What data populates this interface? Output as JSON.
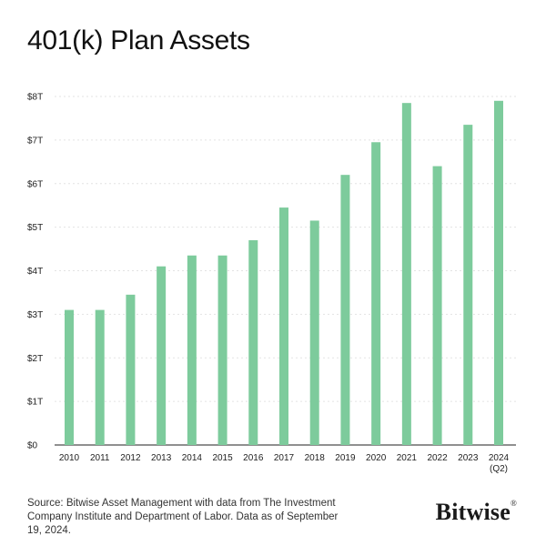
{
  "page": {
    "title": "401(k) Plan Assets",
    "source": "Source: Bitwise Asset Management with data from The Investment Company Institute and Department of Labor. Data as of September 19, 2024.",
    "brand": "Bitwise",
    "brand_mark": "®"
  },
  "colors": {
    "bar": "#7dcb9c",
    "grid": "#e3e3e3",
    "axis": "#222222"
  },
  "chart_data": {
    "type": "bar",
    "title": "401(k) Plan Assets",
    "xlabel": "",
    "ylabel": "",
    "categories": [
      "2010",
      "2011",
      "2012",
      "2013",
      "2014",
      "2015",
      "2016",
      "2017",
      "2018",
      "2019",
      "2020",
      "2021",
      "2022",
      "2023",
      "2024"
    ],
    "category_sublabels": [
      "",
      "",
      "",
      "",
      "",
      "",
      "",
      "",
      "",
      "",
      "",
      "",
      "",
      "",
      "(Q2)"
    ],
    "values": [
      3.1,
      3.1,
      3.45,
      4.1,
      4.35,
      4.35,
      4.7,
      5.45,
      5.15,
      6.2,
      6.95,
      7.85,
      6.4,
      7.35,
      7.9
    ],
    "yticks": [
      "$0",
      "$1T",
      "$2T",
      "$3T",
      "$4T",
      "$5T",
      "$6T",
      "$7T",
      "$8T"
    ],
    "ylim": [
      0,
      8
    ],
    "grid": true,
    "legend": "none"
  }
}
